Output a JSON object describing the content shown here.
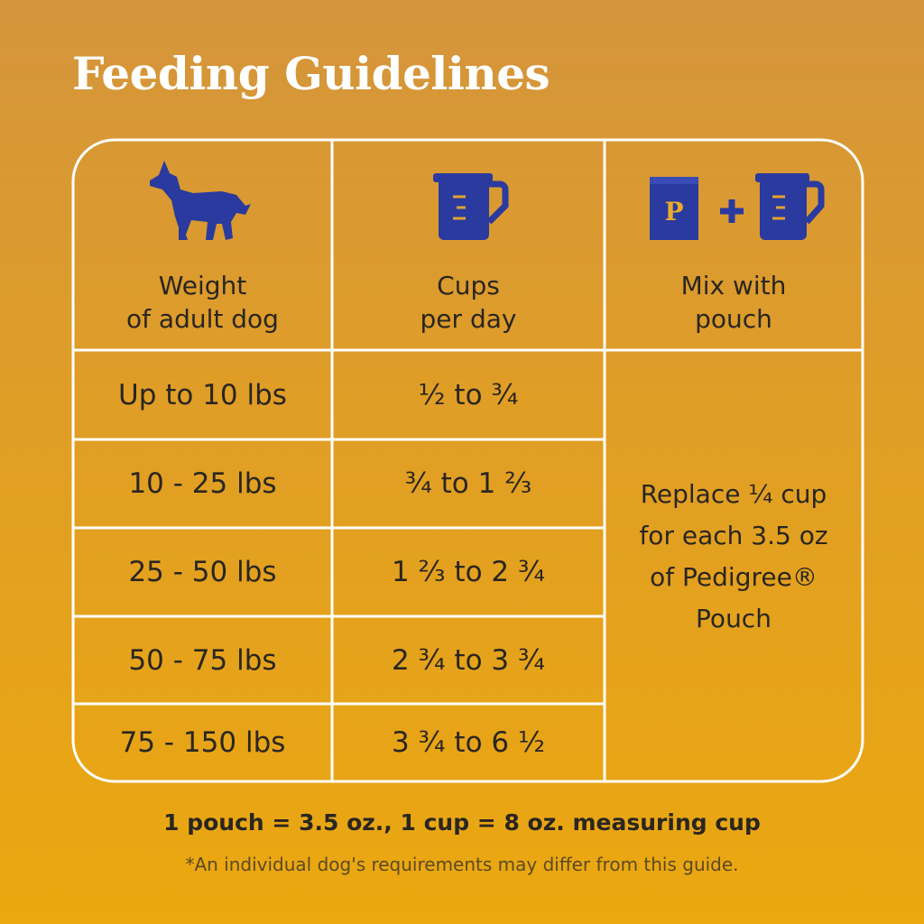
{
  "header": {
    "title": "Feeding Guidelines"
  },
  "table": {
    "columns": [
      {
        "label": [
          "Weight",
          "of adult dog"
        ]
      },
      {
        "label": [
          "Cups",
          "per day"
        ]
      },
      {
        "label": [
          "Mix with",
          "pouch"
        ],
        "pouch_icon_text": "P"
      }
    ],
    "rows": [
      [
        "Up to 10 lbs",
        "½  to  ¾"
      ],
      [
        "10 - 25 lbs",
        "¾  to  1 ⅔"
      ],
      [
        "25 - 50 lbs",
        "1 ⅔  to  2 ¾"
      ],
      [
        "50 - 75 lbs",
        "2 ¾  to  3 ¾"
      ],
      [
        "75 - 150 lbs",
        "3 ¾  to  6 ½"
      ]
    ],
    "merged_cell": [
      "Replace ¼ cup",
      "for each 3.5 oz",
      "of Pedigree®",
      "Pouch"
    ]
  },
  "footer": {
    "note": "1 pouch = 3.5 oz., 1 cup = 8 oz. measuring cup",
    "disclaimer": "*An individual dog's requirements may differ from this guide."
  }
}
